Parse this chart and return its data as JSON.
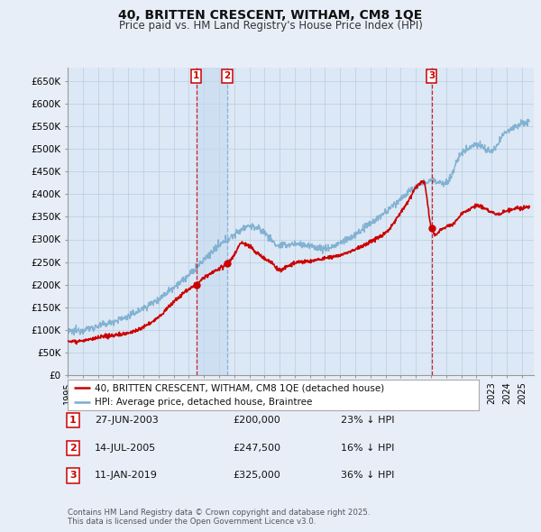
{
  "title": "40, BRITTEN CRESCENT, WITHAM, CM8 1QE",
  "subtitle": "Price paid vs. HM Land Registry's House Price Index (HPI)",
  "ylim": [
    0,
    680000
  ],
  "yticks": [
    0,
    50000,
    100000,
    150000,
    200000,
    250000,
    300000,
    350000,
    400000,
    450000,
    500000,
    550000,
    600000,
    650000
  ],
  "ytick_labels": [
    "£0",
    "£50K",
    "£100K",
    "£150K",
    "£200K",
    "£250K",
    "£300K",
    "£350K",
    "£400K",
    "£450K",
    "£500K",
    "£550K",
    "£600K",
    "£650K"
  ],
  "bg_color": "#e8eef8",
  "plot_bg": "#dce8f5",
  "grid_color": "#b8cce0",
  "red_color": "#cc0000",
  "blue_color": "#7aadcf",
  "shade_color": "#c5daf0",
  "purchase1_date": 2003.49,
  "purchase1_price": 200000,
  "purchase2_date": 2005.54,
  "purchase2_price": 247500,
  "purchase3_date": 2019.03,
  "purchase3_price": 325000,
  "legend_label_red": "40, BRITTEN CRESCENT, WITHAM, CM8 1QE (detached house)",
  "legend_label_blue": "HPI: Average price, detached house, Braintree",
  "table_entries": [
    {
      "num": "1",
      "date": "27-JUN-2003",
      "price": "£200,000",
      "hpi": "23% ↓ HPI"
    },
    {
      "num": "2",
      "date": "14-JUL-2005",
      "price": "£247,500",
      "hpi": "16% ↓ HPI"
    },
    {
      "num": "3",
      "date": "11-JAN-2019",
      "price": "£325,000",
      "hpi": "36% ↓ HPI"
    }
  ],
  "footer": "Contains HM Land Registry data © Crown copyright and database right 2025.\nThis data is licensed under the Open Government Licence v3.0."
}
